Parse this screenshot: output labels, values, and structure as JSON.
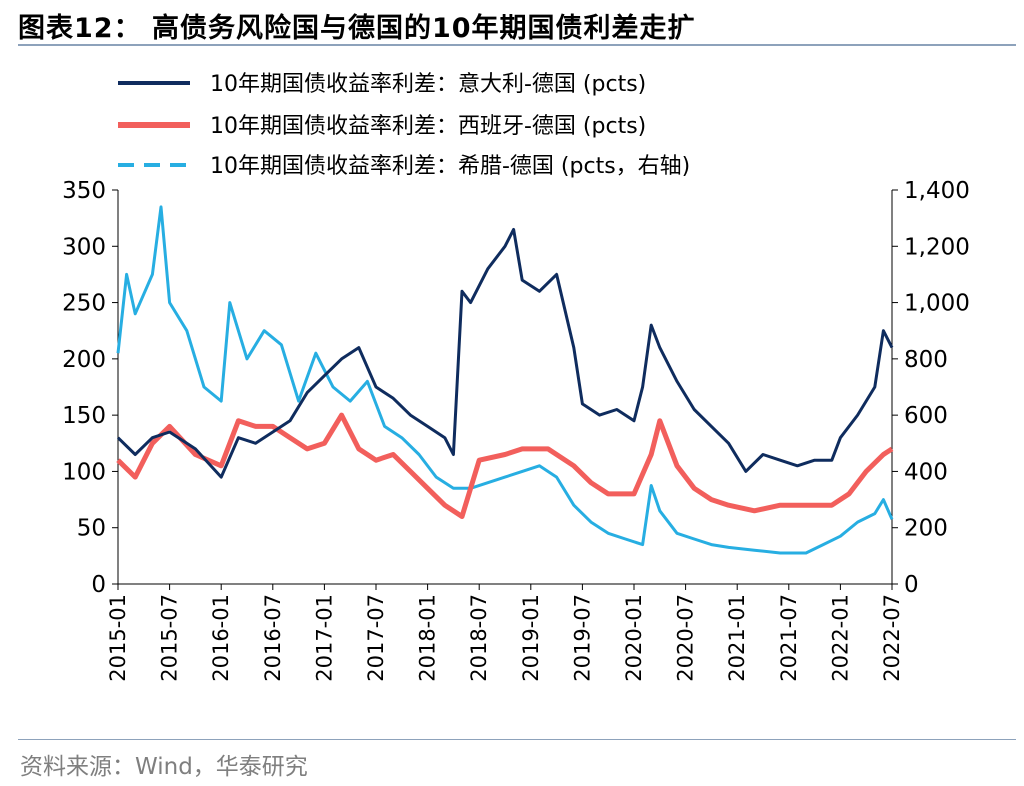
{
  "header": {
    "title": "图表12：  高债务风险国与德国的10年期国债利差走扩"
  },
  "footer": {
    "source": "资料来源：Wind，华泰研究"
  },
  "chart_data": {
    "type": "line",
    "title": "图表12：  高债务风险国与德国的10年期国债利差走扩",
    "x_ticks": [
      "2015-01",
      "2015-07",
      "2016-01",
      "2016-07",
      "2017-01",
      "2017-07",
      "2018-01",
      "2018-07",
      "2019-01",
      "2019-07",
      "2020-01",
      "2020-07",
      "2021-01",
      "2021-07",
      "2022-01",
      "2022-07"
    ],
    "y_left": {
      "lim": [
        0,
        350
      ],
      "ticks": [
        "0",
        "50",
        "100",
        "150",
        "200",
        "250",
        "300",
        "350"
      ]
    },
    "y_right": {
      "lim": [
        0,
        1400
      ],
      "ticks": [
        "0",
        "200",
        "400",
        "600",
        "800",
        "1,000",
        "1,200",
        "1,400"
      ]
    },
    "grid": false,
    "legend_position": "top",
    "series": [
      {
        "name": "10年期国债收益率利差：意大利-德国 (pcts)",
        "axis": "left",
        "color": "#0f2c5e",
        "style": "solid",
        "x": [
          "2015-01",
          "2015-03",
          "2015-05",
          "2015-07",
          "2015-10",
          "2016-01",
          "2016-03",
          "2016-05",
          "2016-07",
          "2016-09",
          "2016-11",
          "2017-01",
          "2017-03",
          "2017-05",
          "2017-07",
          "2017-09",
          "2017-11",
          "2018-01",
          "2018-03",
          "2018-04",
          "2018-05",
          "2018-06",
          "2018-08",
          "2018-10",
          "2018-11",
          "2018-12",
          "2019-02",
          "2019-04",
          "2019-06",
          "2019-07",
          "2019-09",
          "2019-11",
          "2020-01",
          "2020-02",
          "2020-03",
          "2020-04",
          "2020-06",
          "2020-08",
          "2020-10",
          "2020-12",
          "2021-02",
          "2021-04",
          "2021-06",
          "2021-08",
          "2021-10",
          "2021-12",
          "2022-01",
          "2022-03",
          "2022-05",
          "2022-06",
          "2022-07"
        ],
        "values": [
          130,
          115,
          130,
          135,
          120,
          95,
          130,
          125,
          135,
          145,
          170,
          185,
          200,
          210,
          175,
          165,
          150,
          140,
          130,
          115,
          260,
          250,
          280,
          300,
          315,
          270,
          260,
          275,
          210,
          160,
          150,
          155,
          145,
          175,
          230,
          210,
          180,
          155,
          140,
          125,
          100,
          115,
          110,
          105,
          110,
          110,
          130,
          150,
          175,
          225,
          210
        ]
      },
      {
        "name": "10年期国债收益率利差：西班牙-德国 (pcts)",
        "axis": "left",
        "color": "#f25f5c",
        "style": "solid",
        "x": [
          "2015-01",
          "2015-03",
          "2015-05",
          "2015-07",
          "2015-10",
          "2016-01",
          "2016-03",
          "2016-05",
          "2016-07",
          "2016-09",
          "2016-11",
          "2017-01",
          "2017-03",
          "2017-05",
          "2017-07",
          "2017-09",
          "2017-11",
          "2018-01",
          "2018-03",
          "2018-05",
          "2018-07",
          "2018-10",
          "2018-12",
          "2019-03",
          "2019-06",
          "2019-08",
          "2019-10",
          "2020-01",
          "2020-03",
          "2020-04",
          "2020-06",
          "2020-08",
          "2020-10",
          "2020-12",
          "2021-03",
          "2021-06",
          "2021-09",
          "2021-12",
          "2022-02",
          "2022-04",
          "2022-06",
          "2022-07"
        ],
        "values": [
          110,
          95,
          125,
          140,
          115,
          105,
          145,
          140,
          140,
          130,
          120,
          125,
          150,
          120,
          110,
          115,
          100,
          85,
          70,
          60,
          110,
          115,
          120,
          120,
          105,
          90,
          80,
          80,
          115,
          145,
          105,
          85,
          75,
          70,
          65,
          70,
          70,
          70,
          80,
          100,
          115,
          120
        ]
      },
      {
        "name": "10年期国债收益率利差：希腊-德国 (pcts，右轴)",
        "axis": "right",
        "color": "#27aee2",
        "style": "dashed",
        "x": [
          "2015-01",
          "2015-02",
          "2015-03",
          "2015-05",
          "2015-06",
          "2015-07",
          "2015-09",
          "2015-11",
          "2016-01",
          "2016-02",
          "2016-04",
          "2016-06",
          "2016-08",
          "2016-10",
          "2016-12",
          "2017-02",
          "2017-04",
          "2017-06",
          "2017-08",
          "2017-10",
          "2017-12",
          "2018-02",
          "2018-04",
          "2018-06",
          "2018-08",
          "2018-10",
          "2018-12",
          "2019-02",
          "2019-04",
          "2019-06",
          "2019-08",
          "2019-10",
          "2019-12",
          "2020-02",
          "2020-03",
          "2020-04",
          "2020-06",
          "2020-08",
          "2020-10",
          "2020-12",
          "2021-03",
          "2021-06",
          "2021-09",
          "2021-11",
          "2022-01",
          "2022-03",
          "2022-05",
          "2022-06",
          "2022-07"
        ],
        "values": [
          820,
          1100,
          960,
          1100,
          1340,
          1000,
          900,
          700,
          650,
          1000,
          800,
          900,
          850,
          650,
          820,
          700,
          650,
          720,
          560,
          520,
          460,
          380,
          340,
          340,
          360,
          380,
          400,
          420,
          380,
          280,
          220,
          180,
          160,
          140,
          350,
          260,
          180,
          160,
          140,
          130,
          120,
          110,
          110,
          140,
          170,
          220,
          250,
          300,
          230
        ]
      }
    ]
  }
}
